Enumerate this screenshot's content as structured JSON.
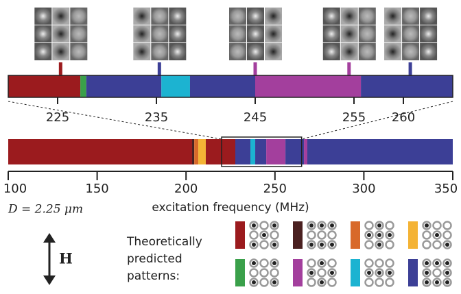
{
  "chart_data": {
    "type": "segmented-bar",
    "zoom": {
      "xlim": [
        220,
        265
      ],
      "xticks": [
        225,
        235,
        245,
        255,
        260
      ],
      "segments": [
        {
          "start": 220,
          "end": 227.3,
          "color": "#9b1b1e"
        },
        {
          "start": 227.3,
          "end": 227.9,
          "color": "#3aa04a"
        },
        {
          "start": 227.9,
          "end": 235.5,
          "color": "#3c3f96"
        },
        {
          "start": 235.5,
          "end": 238.4,
          "color": "#1cb3d1"
        },
        {
          "start": 238.4,
          "end": 245,
          "color": "#3c3f96"
        },
        {
          "start": 245,
          "end": 255.7,
          "color": "#a33f9d"
        },
        {
          "start": 255.7,
          "end": 265,
          "color": "#3c3f96"
        }
      ],
      "markers": [
        {
          "x": 225.3,
          "color": "#9b1b1e"
        },
        {
          "x": 235.3,
          "color": "#3c3f96"
        },
        {
          "x": 245.0,
          "color": "#a33f9d"
        },
        {
          "x": 254.5,
          "color": "#a33f9d"
        },
        {
          "x": 260.7,
          "color": "#3c3f96"
        }
      ]
    },
    "xlim": [
      100,
      350
    ],
    "xticks": [
      100,
      150,
      200,
      250,
      300,
      350
    ],
    "xlabel": "excitation frequency (MHz)",
    "segments": [
      {
        "start": 100,
        "end": 203.4,
        "color": "#9b1b1e"
      },
      {
        "start": 203.4,
        "end": 204.6,
        "color": "#4a2020"
      },
      {
        "start": 204.6,
        "end": 206.9,
        "color": "#d8692a"
      },
      {
        "start": 206.9,
        "end": 211.1,
        "color": "#f4b335"
      },
      {
        "start": 211.1,
        "end": 227.7,
        "color": "#9b1b1e"
      },
      {
        "start": 227.7,
        "end": 236.2,
        "color": "#3c3f96"
      },
      {
        "start": 236.2,
        "end": 238.9,
        "color": "#1cb3d1"
      },
      {
        "start": 238.9,
        "end": 245.1,
        "color": "#3c3f96"
      },
      {
        "start": 245.1,
        "end": 255.9,
        "color": "#a33f9d"
      },
      {
        "start": 255.9,
        "end": 266.3,
        "color": "#3c3f96"
      },
      {
        "start": 266.3,
        "end": 268.2,
        "color": "#a33f9d"
      },
      {
        "start": 268.2,
        "end": 350,
        "color": "#3c3f96"
      }
    ],
    "diameter_label": "D = 2.25 μm",
    "field_label": "H",
    "legend_title": [
      "Theoretically",
      "predicted",
      "patterns:"
    ],
    "legend_colors": [
      "#9b1b1e",
      "#4a2020",
      "#d8692a",
      "#f4b335",
      "#3aa04a",
      "#a33f9d",
      "#1cb3d1",
      "#3c3f96"
    ]
  }
}
